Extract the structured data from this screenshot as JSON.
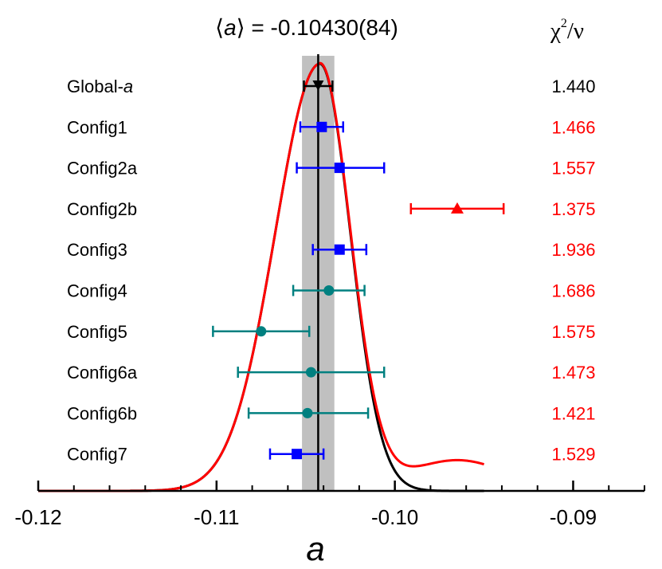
{
  "chart_data": {
    "type": "scatter",
    "title_prefix": "⟨a⟩ = ",
    "title_value": "-0.10430(84)",
    "chi_header_base": "χ",
    "chi_header_sup": "2",
    "chi_header_suffix": "/ν",
    "xlabel": "a",
    "xlim": [
      -0.12,
      -0.086
    ],
    "xticks": [
      -0.12,
      -0.11,
      -0.1,
      -0.09
    ],
    "xtick_labels": [
      "-0.12",
      "-0.11",
      "-0.10",
      "-0.09"
    ],
    "mean": -0.1043,
    "mean_error": 0.00084,
    "series": [
      {
        "label_main": "Global-",
        "label_italic": "a",
        "value": -0.1043,
        "err_low": 0.0008,
        "err_high": 0.0008,
        "chi2": "1.440",
        "marker": "triangle-down",
        "color": "#000000",
        "chi_color": "#000000"
      },
      {
        "label_main": "Config1",
        "label_italic": "",
        "value": -0.1041,
        "err_low": 0.0012,
        "err_high": 0.0012,
        "chi2": "1.466",
        "marker": "square",
        "color": "#0000ff",
        "chi_color": "#ff0000"
      },
      {
        "label_main": "Config2a",
        "label_italic": "",
        "value": -0.1031,
        "err_low": 0.0024,
        "err_high": 0.0025,
        "chi2": "1.557",
        "marker": "square",
        "color": "#0000ff",
        "chi_color": "#ff0000"
      },
      {
        "label_main": "Config2b",
        "label_italic": "",
        "value": -0.0965,
        "err_low": 0.0026,
        "err_high": 0.0026,
        "chi2": "1.375",
        "marker": "triangle-up",
        "color": "#ff0000",
        "chi_color": "#ff0000"
      },
      {
        "label_main": "Config3",
        "label_italic": "",
        "value": -0.1031,
        "err_low": 0.0015,
        "err_high": 0.0015,
        "chi2": "1.936",
        "marker": "square",
        "color": "#0000ff",
        "chi_color": "#ff0000"
      },
      {
        "label_main": "Config4",
        "label_italic": "",
        "value": -0.1037,
        "err_low": 0.002,
        "err_high": 0.002,
        "chi2": "1.686",
        "marker": "circle",
        "color": "#008080",
        "chi_color": "#ff0000"
      },
      {
        "label_main": "Config5",
        "label_italic": "",
        "value": -0.1075,
        "err_low": 0.0027,
        "err_high": 0.0027,
        "chi2": "1.575",
        "marker": "circle",
        "color": "#008080",
        "chi_color": "#ff0000"
      },
      {
        "label_main": "Config6a",
        "label_italic": "",
        "value": -0.1047,
        "err_low": 0.0041,
        "err_high": 0.0041,
        "chi2": "1.473",
        "marker": "circle",
        "color": "#008080",
        "chi_color": "#ff0000"
      },
      {
        "label_main": "Config6b",
        "label_italic": "",
        "value": -0.1049,
        "err_low": 0.0033,
        "err_high": 0.0034,
        "chi2": "1.421",
        "marker": "circle",
        "color": "#008080",
        "chi_color": "#ff0000"
      },
      {
        "label_main": "Config7",
        "label_italic": "",
        "value": -0.1055,
        "err_low": 0.0015,
        "err_high": 0.0015,
        "chi2": "1.529",
        "marker": "square",
        "color": "#0000ff",
        "chi_color": "#ff0000"
      }
    ],
    "curves": [
      {
        "name": "",
        "color": "#000000",
        "shape": "gaussian",
        "center": -0.1042,
        "sigma_left": 0.0025,
        "sigma_right": 0.0017,
        "x_range": [
          -0.12,
          -0.095
        ]
      },
      {
        "name": "",
        "color": "#ff0000",
        "shape": "gaussian-with-tail",
        "center": -0.1042,
        "sigma_left": 0.0025,
        "sigma_right": 0.0017,
        "x_range": [
          -0.12,
          -0.095
        ]
      }
    ],
    "colors": {
      "band": "#c0c0c0",
      "axis": "#000000",
      "global": "#000000",
      "blue": "#0000ff",
      "teal": "#008080",
      "red": "#ff0000"
    }
  }
}
